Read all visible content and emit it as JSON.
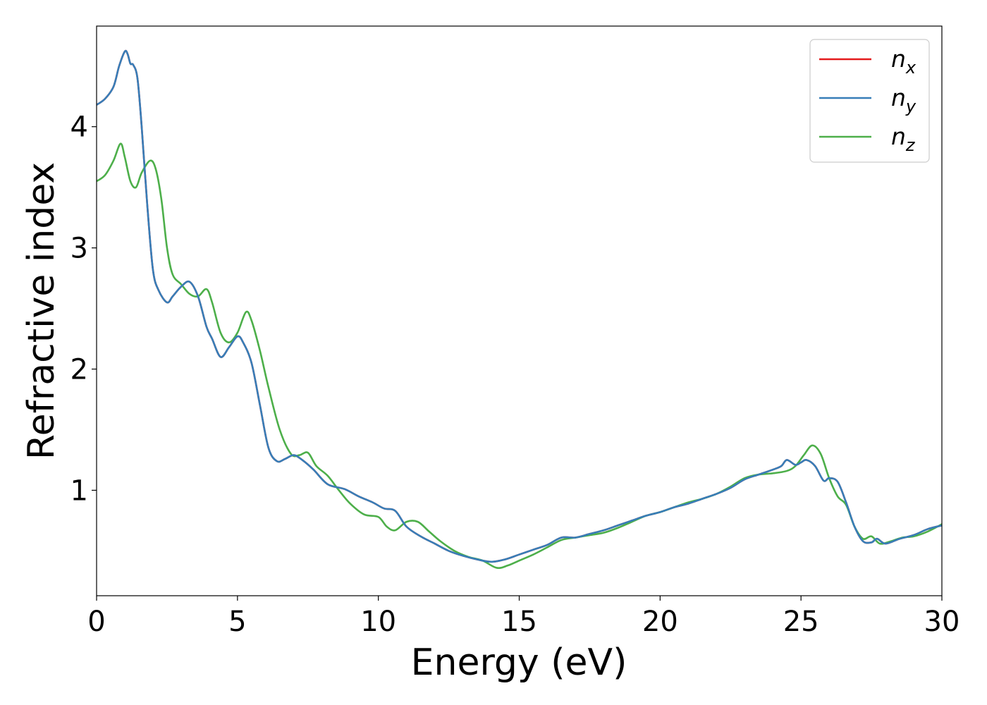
{
  "chart_data": {
    "type": "line",
    "title": "",
    "xlabel": "Energy (eV)",
    "ylabel": "Refractive index",
    "xlim": [
      0,
      30
    ],
    "ylim": [
      0.13,
      4.83
    ],
    "xticks": [
      0,
      5,
      10,
      15,
      20,
      25,
      30
    ],
    "yticks": [
      1,
      2,
      3,
      4
    ],
    "grid": false,
    "legend_position": "top-right",
    "series": [
      {
        "name": "n_x",
        "legend_main": "n",
        "legend_sub": "x",
        "color": "#e41a1c",
        "x": [
          0,
          0.3,
          0.6,
          0.8,
          1.0,
          1.1,
          1.2,
          1.3,
          1.45,
          1.6,
          1.8,
          2.0,
          2.2,
          2.5,
          2.7,
          3.0,
          3.3,
          3.6,
          3.9,
          4.1,
          4.4,
          4.7,
          5.0,
          5.2,
          5.5,
          5.8,
          6.1,
          6.4,
          6.7,
          7.0,
          7.3,
          7.7,
          8.2,
          8.8,
          9.3,
          9.8,
          10.2,
          10.6,
          11.0,
          11.5,
          12.0,
          12.5,
          13.0,
          13.5,
          14.0,
          14.5,
          15.0,
          15.5,
          16.0,
          16.5,
          17.0,
          17.5,
          18.0,
          18.5,
          19.0,
          19.5,
          20.0,
          20.5,
          21.0,
          21.5,
          22.0,
          22.5,
          23.0,
          23.5,
          24.0,
          24.3,
          24.5,
          24.8,
          25.0,
          25.2,
          25.5,
          25.8,
          26.0,
          26.3,
          26.6,
          26.9,
          27.2,
          27.5,
          27.7,
          28.0,
          28.5,
          29.0,
          29.5,
          30.0
        ],
        "y": [
          4.18,
          4.23,
          4.33,
          4.5,
          4.62,
          4.6,
          4.52,
          4.51,
          4.4,
          4.0,
          3.35,
          2.82,
          2.65,
          2.55,
          2.6,
          2.68,
          2.72,
          2.6,
          2.35,
          2.25,
          2.1,
          2.18,
          2.27,
          2.22,
          2.05,
          1.7,
          1.35,
          1.24,
          1.26,
          1.29,
          1.25,
          1.17,
          1.05,
          1.01,
          0.95,
          0.9,
          0.85,
          0.83,
          0.7,
          0.62,
          0.56,
          0.5,
          0.46,
          0.43,
          0.41,
          0.43,
          0.47,
          0.51,
          0.55,
          0.61,
          0.61,
          0.64,
          0.67,
          0.71,
          0.75,
          0.79,
          0.82,
          0.86,
          0.89,
          0.93,
          0.97,
          1.02,
          1.09,
          1.13,
          1.17,
          1.2,
          1.25,
          1.21,
          1.23,
          1.25,
          1.2,
          1.08,
          1.1,
          1.07,
          0.9,
          0.7,
          0.58,
          0.57,
          0.6,
          0.56,
          0.6,
          0.63,
          0.68,
          0.71
        ]
      },
      {
        "name": "n_y",
        "legend_main": "n",
        "legend_sub": "y",
        "color": "#377eb8",
        "x": [
          0,
          0.3,
          0.6,
          0.8,
          1.0,
          1.1,
          1.2,
          1.3,
          1.45,
          1.6,
          1.8,
          2.0,
          2.2,
          2.5,
          2.7,
          3.0,
          3.3,
          3.6,
          3.9,
          4.1,
          4.4,
          4.7,
          5.0,
          5.2,
          5.5,
          5.8,
          6.1,
          6.4,
          6.7,
          7.0,
          7.3,
          7.7,
          8.2,
          8.8,
          9.3,
          9.8,
          10.2,
          10.6,
          11.0,
          11.5,
          12.0,
          12.5,
          13.0,
          13.5,
          14.0,
          14.5,
          15.0,
          15.5,
          16.0,
          16.5,
          17.0,
          17.5,
          18.0,
          18.5,
          19.0,
          19.5,
          20.0,
          20.5,
          21.0,
          21.5,
          22.0,
          22.5,
          23.0,
          23.5,
          24.0,
          24.3,
          24.5,
          24.8,
          25.0,
          25.2,
          25.5,
          25.8,
          26.0,
          26.3,
          26.6,
          26.9,
          27.2,
          27.5,
          27.7,
          28.0,
          28.5,
          29.0,
          29.5,
          30.0
        ],
        "y": [
          4.18,
          4.23,
          4.33,
          4.5,
          4.62,
          4.6,
          4.52,
          4.51,
          4.4,
          4.0,
          3.35,
          2.82,
          2.65,
          2.55,
          2.6,
          2.68,
          2.72,
          2.6,
          2.35,
          2.25,
          2.1,
          2.18,
          2.27,
          2.22,
          2.05,
          1.7,
          1.35,
          1.24,
          1.26,
          1.29,
          1.25,
          1.17,
          1.05,
          1.01,
          0.95,
          0.9,
          0.85,
          0.83,
          0.7,
          0.62,
          0.56,
          0.5,
          0.46,
          0.43,
          0.41,
          0.43,
          0.47,
          0.51,
          0.55,
          0.61,
          0.61,
          0.64,
          0.67,
          0.71,
          0.75,
          0.79,
          0.82,
          0.86,
          0.89,
          0.93,
          0.97,
          1.02,
          1.09,
          1.13,
          1.17,
          1.2,
          1.25,
          1.21,
          1.23,
          1.25,
          1.2,
          1.08,
          1.1,
          1.07,
          0.9,
          0.7,
          0.58,
          0.57,
          0.6,
          0.56,
          0.6,
          0.63,
          0.68,
          0.71
        ]
      },
      {
        "name": "n_z",
        "legend_main": "n",
        "legend_sub": "z",
        "color": "#4daf4a",
        "x": [
          0,
          0.3,
          0.6,
          0.85,
          1.0,
          1.2,
          1.4,
          1.6,
          1.9,
          2.1,
          2.3,
          2.5,
          2.7,
          3.0,
          3.3,
          3.6,
          3.9,
          4.1,
          4.4,
          4.7,
          5.0,
          5.3,
          5.5,
          5.8,
          6.1,
          6.5,
          6.9,
          7.2,
          7.5,
          7.8,
          8.2,
          8.6,
          9.0,
          9.5,
          10.0,
          10.3,
          10.6,
          11.0,
          11.4,
          11.8,
          12.2,
          12.7,
          13.2,
          13.7,
          14.2,
          14.6,
          15.0,
          15.5,
          16.0,
          16.5,
          17.0,
          17.5,
          18.0,
          18.5,
          19.0,
          19.5,
          20.0,
          20.5,
          21.0,
          21.5,
          22.0,
          22.5,
          23.0,
          23.5,
          24.0,
          24.5,
          24.8,
          25.1,
          25.4,
          25.7,
          26.0,
          26.3,
          26.6,
          26.9,
          27.2,
          27.5,
          27.8,
          28.2,
          28.6,
          29.0,
          29.5,
          30.0
        ],
        "y": [
          3.55,
          3.6,
          3.72,
          3.86,
          3.75,
          3.55,
          3.5,
          3.62,
          3.72,
          3.65,
          3.4,
          3.0,
          2.78,
          2.7,
          2.62,
          2.6,
          2.66,
          2.55,
          2.3,
          2.22,
          2.3,
          2.47,
          2.4,
          2.15,
          1.85,
          1.5,
          1.3,
          1.29,
          1.31,
          1.2,
          1.12,
          1.0,
          0.89,
          0.8,
          0.78,
          0.7,
          0.67,
          0.74,
          0.74,
          0.66,
          0.58,
          0.5,
          0.45,
          0.42,
          0.36,
          0.38,
          0.42,
          0.47,
          0.53,
          0.59,
          0.61,
          0.63,
          0.65,
          0.69,
          0.74,
          0.79,
          0.82,
          0.86,
          0.9,
          0.93,
          0.97,
          1.03,
          1.1,
          1.13,
          1.14,
          1.16,
          1.2,
          1.29,
          1.37,
          1.3,
          1.1,
          0.95,
          0.88,
          0.7,
          0.6,
          0.62,
          0.56,
          0.58,
          0.61,
          0.62,
          0.66,
          0.72
        ]
      }
    ]
  }
}
